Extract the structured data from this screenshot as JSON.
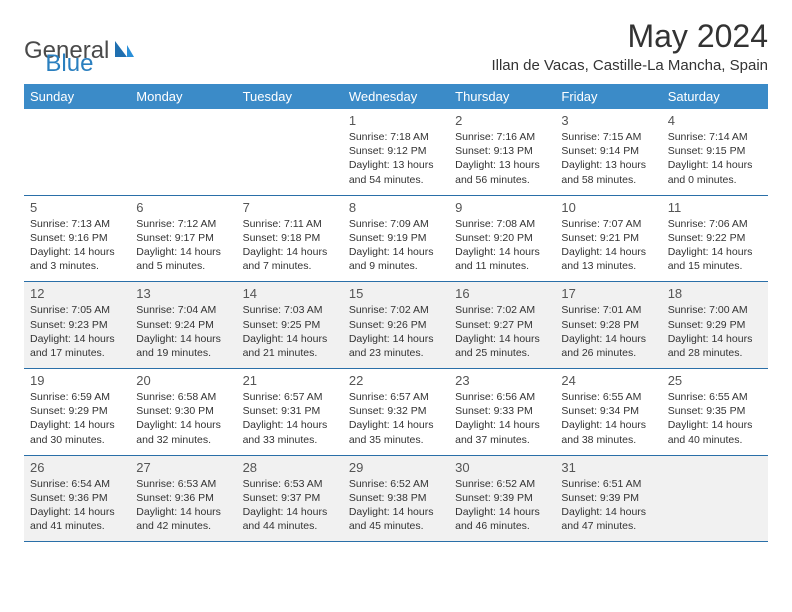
{
  "logo": {
    "general": "General",
    "blue": "Blue"
  },
  "title": "May 2024",
  "location": "Illan de Vacas, Castille-La Mancha, Spain",
  "colors": {
    "header_bg": "#3b8bc8",
    "header_text": "#ffffff",
    "row_border": "#2a6fa8",
    "shaded_row": "#f1f1f1",
    "logo_blue": "#2a7fbf",
    "page_bg": "#ffffff"
  },
  "dayNames": [
    "Sunday",
    "Monday",
    "Tuesday",
    "Wednesday",
    "Thursday",
    "Friday",
    "Saturday"
  ],
  "weeks": [
    {
      "shaded": false,
      "cells": [
        null,
        null,
        null,
        {
          "n": "1",
          "sr": "7:18 AM",
          "ss": "9:12 PM",
          "dl": "13 hours and 54 minutes."
        },
        {
          "n": "2",
          "sr": "7:16 AM",
          "ss": "9:13 PM",
          "dl": "13 hours and 56 minutes."
        },
        {
          "n": "3",
          "sr": "7:15 AM",
          "ss": "9:14 PM",
          "dl": "13 hours and 58 minutes."
        },
        {
          "n": "4",
          "sr": "7:14 AM",
          "ss": "9:15 PM",
          "dl": "14 hours and 0 minutes."
        }
      ]
    },
    {
      "shaded": false,
      "cells": [
        {
          "n": "5",
          "sr": "7:13 AM",
          "ss": "9:16 PM",
          "dl": "14 hours and 3 minutes."
        },
        {
          "n": "6",
          "sr": "7:12 AM",
          "ss": "9:17 PM",
          "dl": "14 hours and 5 minutes."
        },
        {
          "n": "7",
          "sr": "7:11 AM",
          "ss": "9:18 PM",
          "dl": "14 hours and 7 minutes."
        },
        {
          "n": "8",
          "sr": "7:09 AM",
          "ss": "9:19 PM",
          "dl": "14 hours and 9 minutes."
        },
        {
          "n": "9",
          "sr": "7:08 AM",
          "ss": "9:20 PM",
          "dl": "14 hours and 11 minutes."
        },
        {
          "n": "10",
          "sr": "7:07 AM",
          "ss": "9:21 PM",
          "dl": "14 hours and 13 minutes."
        },
        {
          "n": "11",
          "sr": "7:06 AM",
          "ss": "9:22 PM",
          "dl": "14 hours and 15 minutes."
        }
      ]
    },
    {
      "shaded": true,
      "cells": [
        {
          "n": "12",
          "sr": "7:05 AM",
          "ss": "9:23 PM",
          "dl": "14 hours and 17 minutes."
        },
        {
          "n": "13",
          "sr": "7:04 AM",
          "ss": "9:24 PM",
          "dl": "14 hours and 19 minutes."
        },
        {
          "n": "14",
          "sr": "7:03 AM",
          "ss": "9:25 PM",
          "dl": "14 hours and 21 minutes."
        },
        {
          "n": "15",
          "sr": "7:02 AM",
          "ss": "9:26 PM",
          "dl": "14 hours and 23 minutes."
        },
        {
          "n": "16",
          "sr": "7:02 AM",
          "ss": "9:27 PM",
          "dl": "14 hours and 25 minutes."
        },
        {
          "n": "17",
          "sr": "7:01 AM",
          "ss": "9:28 PM",
          "dl": "14 hours and 26 minutes."
        },
        {
          "n": "18",
          "sr": "7:00 AM",
          "ss": "9:29 PM",
          "dl": "14 hours and 28 minutes."
        }
      ]
    },
    {
      "shaded": false,
      "cells": [
        {
          "n": "19",
          "sr": "6:59 AM",
          "ss": "9:29 PM",
          "dl": "14 hours and 30 minutes."
        },
        {
          "n": "20",
          "sr": "6:58 AM",
          "ss": "9:30 PM",
          "dl": "14 hours and 32 minutes."
        },
        {
          "n": "21",
          "sr": "6:57 AM",
          "ss": "9:31 PM",
          "dl": "14 hours and 33 minutes."
        },
        {
          "n": "22",
          "sr": "6:57 AM",
          "ss": "9:32 PM",
          "dl": "14 hours and 35 minutes."
        },
        {
          "n": "23",
          "sr": "6:56 AM",
          "ss": "9:33 PM",
          "dl": "14 hours and 37 minutes."
        },
        {
          "n": "24",
          "sr": "6:55 AM",
          "ss": "9:34 PM",
          "dl": "14 hours and 38 minutes."
        },
        {
          "n": "25",
          "sr": "6:55 AM",
          "ss": "9:35 PM",
          "dl": "14 hours and 40 minutes."
        }
      ]
    },
    {
      "shaded": true,
      "cells": [
        {
          "n": "26",
          "sr": "6:54 AM",
          "ss": "9:36 PM",
          "dl": "14 hours and 41 minutes."
        },
        {
          "n": "27",
          "sr": "6:53 AM",
          "ss": "9:36 PM",
          "dl": "14 hours and 42 minutes."
        },
        {
          "n": "28",
          "sr": "6:53 AM",
          "ss": "9:37 PM",
          "dl": "14 hours and 44 minutes."
        },
        {
          "n": "29",
          "sr": "6:52 AM",
          "ss": "9:38 PM",
          "dl": "14 hours and 45 minutes."
        },
        {
          "n": "30",
          "sr": "6:52 AM",
          "ss": "9:39 PM",
          "dl": "14 hours and 46 minutes."
        },
        {
          "n": "31",
          "sr": "6:51 AM",
          "ss": "9:39 PM",
          "dl": "14 hours and 47 minutes."
        },
        null
      ]
    }
  ],
  "labels": {
    "sunrise": "Sunrise: ",
    "sunset": "Sunset: ",
    "daylight": "Daylight: "
  }
}
